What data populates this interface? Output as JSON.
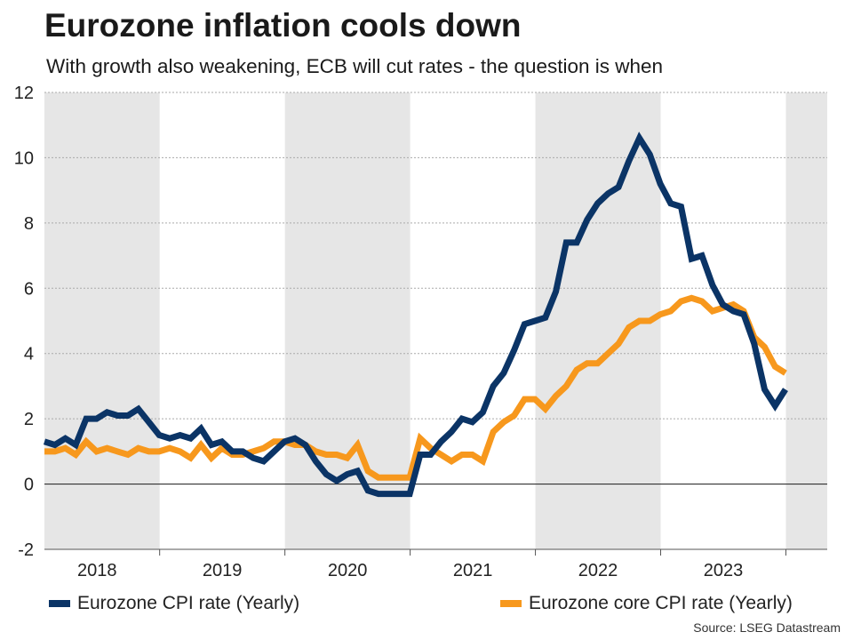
{
  "title": "Eurozone inflation cools down",
  "subtitle": "With growth also weakening, ECB will cut rates - the question is when",
  "source": "Source: LSEG Datastream",
  "colors": {
    "cpi": "#0b3466",
    "core": "#f7981d",
    "shade": "#e6e6e6",
    "grid": "#aaaaaa",
    "zero": "#333333"
  },
  "legend": [
    {
      "label": "Eurozone CPI rate (Yearly)",
      "color": "#0b3466"
    },
    {
      "label": "Eurozone core CPI rate (Yearly)",
      "color": "#f7981d"
    }
  ],
  "chart_data": {
    "type": "line",
    "title": "Eurozone inflation cools down",
    "xlabel": "",
    "ylabel": "",
    "ylim": [
      -2,
      12
    ],
    "yticks": [
      -2,
      0,
      2,
      4,
      6,
      8,
      10,
      12
    ],
    "xlim": [
      2017.58,
      2023.83
    ],
    "year_labels": [
      {
        "label": "2018",
        "x": 2018.0
      },
      {
        "label": "2019",
        "x": 2019.0
      },
      {
        "label": "2020",
        "x": 2020.0
      },
      {
        "label": "2021",
        "x": 2021.0
      },
      {
        "label": "2022",
        "x": 2022.0
      },
      {
        "label": "2023",
        "x": 2023.0
      }
    ],
    "shaded_years": [
      [
        2017.58,
        2018.5
      ],
      [
        2019.5,
        2020.5
      ],
      [
        2021.5,
        2022.5
      ],
      [
        2023.5,
        2023.83
      ]
    ],
    "series": [
      {
        "name": "Eurozone CPI rate (Yearly)",
        "color": "#0b3466",
        "start": 2017.58,
        "step": 0.0833333,
        "values": [
          1.3,
          1.2,
          1.4,
          1.2,
          2.0,
          2.0,
          2.2,
          2.1,
          2.1,
          2.3,
          1.9,
          1.5,
          1.4,
          1.5,
          1.4,
          1.7,
          1.2,
          1.3,
          1.0,
          1.0,
          0.8,
          0.7,
          1.0,
          1.3,
          1.4,
          1.2,
          0.7,
          0.3,
          0.1,
          0.3,
          0.4,
          -0.2,
          -0.3,
          -0.3,
          -0.3,
          -0.3,
          0.9,
          0.9,
          1.3,
          1.6,
          2.0,
          1.9,
          2.2,
          3.0,
          3.4,
          4.1,
          4.9,
          5.0,
          5.1,
          5.9,
          7.4,
          7.4,
          8.1,
          8.6,
          8.9,
          9.1,
          9.9,
          10.6,
          10.1,
          9.2,
          8.6,
          8.5,
          6.9,
          7.0,
          6.1,
          5.5,
          5.3,
          5.2,
          4.3,
          2.9,
          2.4,
          2.9
        ]
      },
      {
        "name": "Eurozone core CPI rate (Yearly)",
        "color": "#f7981d",
        "start": 2017.58,
        "step": 0.0833333,
        "values": [
          1.0,
          1.0,
          1.1,
          0.9,
          1.3,
          1.0,
          1.1,
          1.0,
          0.9,
          1.1,
          1.0,
          1.0,
          1.1,
          1.0,
          0.8,
          1.2,
          0.8,
          1.1,
          0.9,
          0.9,
          1.0,
          1.1,
          1.3,
          1.3,
          1.2,
          1.2,
          1.0,
          0.9,
          0.9,
          0.8,
          1.2,
          0.4,
          0.2,
          0.2,
          0.2,
          0.2,
          1.4,
          1.1,
          0.9,
          0.7,
          0.9,
          0.9,
          0.7,
          1.6,
          1.9,
          2.1,
          2.6,
          2.6,
          2.3,
          2.7,
          3.0,
          3.5,
          3.7,
          3.7,
          4.0,
          4.3,
          4.8,
          5.0,
          5.0,
          5.2,
          5.3,
          5.6,
          5.7,
          5.6,
          5.3,
          5.4,
          5.5,
          5.3,
          4.5,
          4.2,
          3.6,
          3.4
        ]
      }
    ]
  }
}
